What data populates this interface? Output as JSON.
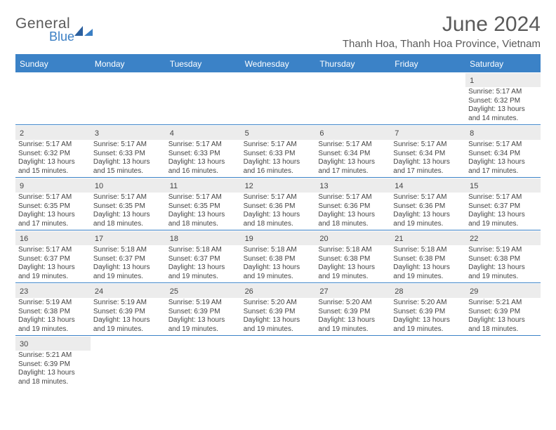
{
  "logo": {
    "text1": "General",
    "text2": "Blue"
  },
  "title": "June 2024",
  "location": "Thanh Hoa, Thanh Hoa Province, Vietnam",
  "colors": {
    "header_bg": "#3b82c7",
    "header_text": "#ffffff",
    "num_bg": "#ececec",
    "text": "#444444",
    "logo_gray": "#5a5a5a",
    "logo_blue": "#3b7fc4"
  },
  "day_headers": [
    "Sunday",
    "Monday",
    "Tuesday",
    "Wednesday",
    "Thursday",
    "Friday",
    "Saturday"
  ],
  "weeks": [
    [
      {
        "blank": true
      },
      {
        "blank": true
      },
      {
        "blank": true
      },
      {
        "blank": true
      },
      {
        "blank": true
      },
      {
        "blank": true
      },
      {
        "num": "1",
        "sunrise": "Sunrise: 5:17 AM",
        "sunset": "Sunset: 6:32 PM",
        "daylight1": "Daylight: 13 hours",
        "daylight2": "and 14 minutes."
      }
    ],
    [
      {
        "num": "2",
        "sunrise": "Sunrise: 5:17 AM",
        "sunset": "Sunset: 6:32 PM",
        "daylight1": "Daylight: 13 hours",
        "daylight2": "and 15 minutes."
      },
      {
        "num": "3",
        "sunrise": "Sunrise: 5:17 AM",
        "sunset": "Sunset: 6:33 PM",
        "daylight1": "Daylight: 13 hours",
        "daylight2": "and 15 minutes."
      },
      {
        "num": "4",
        "sunrise": "Sunrise: 5:17 AM",
        "sunset": "Sunset: 6:33 PM",
        "daylight1": "Daylight: 13 hours",
        "daylight2": "and 16 minutes."
      },
      {
        "num": "5",
        "sunrise": "Sunrise: 5:17 AM",
        "sunset": "Sunset: 6:33 PM",
        "daylight1": "Daylight: 13 hours",
        "daylight2": "and 16 minutes."
      },
      {
        "num": "6",
        "sunrise": "Sunrise: 5:17 AM",
        "sunset": "Sunset: 6:34 PM",
        "daylight1": "Daylight: 13 hours",
        "daylight2": "and 17 minutes."
      },
      {
        "num": "7",
        "sunrise": "Sunrise: 5:17 AM",
        "sunset": "Sunset: 6:34 PM",
        "daylight1": "Daylight: 13 hours",
        "daylight2": "and 17 minutes."
      },
      {
        "num": "8",
        "sunrise": "Sunrise: 5:17 AM",
        "sunset": "Sunset: 6:34 PM",
        "daylight1": "Daylight: 13 hours",
        "daylight2": "and 17 minutes."
      }
    ],
    [
      {
        "num": "9",
        "sunrise": "Sunrise: 5:17 AM",
        "sunset": "Sunset: 6:35 PM",
        "daylight1": "Daylight: 13 hours",
        "daylight2": "and 17 minutes."
      },
      {
        "num": "10",
        "sunrise": "Sunrise: 5:17 AM",
        "sunset": "Sunset: 6:35 PM",
        "daylight1": "Daylight: 13 hours",
        "daylight2": "and 18 minutes."
      },
      {
        "num": "11",
        "sunrise": "Sunrise: 5:17 AM",
        "sunset": "Sunset: 6:35 PM",
        "daylight1": "Daylight: 13 hours",
        "daylight2": "and 18 minutes."
      },
      {
        "num": "12",
        "sunrise": "Sunrise: 5:17 AM",
        "sunset": "Sunset: 6:36 PM",
        "daylight1": "Daylight: 13 hours",
        "daylight2": "and 18 minutes."
      },
      {
        "num": "13",
        "sunrise": "Sunrise: 5:17 AM",
        "sunset": "Sunset: 6:36 PM",
        "daylight1": "Daylight: 13 hours",
        "daylight2": "and 18 minutes."
      },
      {
        "num": "14",
        "sunrise": "Sunrise: 5:17 AM",
        "sunset": "Sunset: 6:36 PM",
        "daylight1": "Daylight: 13 hours",
        "daylight2": "and 19 minutes."
      },
      {
        "num": "15",
        "sunrise": "Sunrise: 5:17 AM",
        "sunset": "Sunset: 6:37 PM",
        "daylight1": "Daylight: 13 hours",
        "daylight2": "and 19 minutes."
      }
    ],
    [
      {
        "num": "16",
        "sunrise": "Sunrise: 5:17 AM",
        "sunset": "Sunset: 6:37 PM",
        "daylight1": "Daylight: 13 hours",
        "daylight2": "and 19 minutes."
      },
      {
        "num": "17",
        "sunrise": "Sunrise: 5:18 AM",
        "sunset": "Sunset: 6:37 PM",
        "daylight1": "Daylight: 13 hours",
        "daylight2": "and 19 minutes."
      },
      {
        "num": "18",
        "sunrise": "Sunrise: 5:18 AM",
        "sunset": "Sunset: 6:37 PM",
        "daylight1": "Daylight: 13 hours",
        "daylight2": "and 19 minutes."
      },
      {
        "num": "19",
        "sunrise": "Sunrise: 5:18 AM",
        "sunset": "Sunset: 6:38 PM",
        "daylight1": "Daylight: 13 hours",
        "daylight2": "and 19 minutes."
      },
      {
        "num": "20",
        "sunrise": "Sunrise: 5:18 AM",
        "sunset": "Sunset: 6:38 PM",
        "daylight1": "Daylight: 13 hours",
        "daylight2": "and 19 minutes."
      },
      {
        "num": "21",
        "sunrise": "Sunrise: 5:18 AM",
        "sunset": "Sunset: 6:38 PM",
        "daylight1": "Daylight: 13 hours",
        "daylight2": "and 19 minutes."
      },
      {
        "num": "22",
        "sunrise": "Sunrise: 5:19 AM",
        "sunset": "Sunset: 6:38 PM",
        "daylight1": "Daylight: 13 hours",
        "daylight2": "and 19 minutes."
      }
    ],
    [
      {
        "num": "23",
        "sunrise": "Sunrise: 5:19 AM",
        "sunset": "Sunset: 6:38 PM",
        "daylight1": "Daylight: 13 hours",
        "daylight2": "and 19 minutes."
      },
      {
        "num": "24",
        "sunrise": "Sunrise: 5:19 AM",
        "sunset": "Sunset: 6:39 PM",
        "daylight1": "Daylight: 13 hours",
        "daylight2": "and 19 minutes."
      },
      {
        "num": "25",
        "sunrise": "Sunrise: 5:19 AM",
        "sunset": "Sunset: 6:39 PM",
        "daylight1": "Daylight: 13 hours",
        "daylight2": "and 19 minutes."
      },
      {
        "num": "26",
        "sunrise": "Sunrise: 5:20 AM",
        "sunset": "Sunset: 6:39 PM",
        "daylight1": "Daylight: 13 hours",
        "daylight2": "and 19 minutes."
      },
      {
        "num": "27",
        "sunrise": "Sunrise: 5:20 AM",
        "sunset": "Sunset: 6:39 PM",
        "daylight1": "Daylight: 13 hours",
        "daylight2": "and 19 minutes."
      },
      {
        "num": "28",
        "sunrise": "Sunrise: 5:20 AM",
        "sunset": "Sunset: 6:39 PM",
        "daylight1": "Daylight: 13 hours",
        "daylight2": "and 19 minutes."
      },
      {
        "num": "29",
        "sunrise": "Sunrise: 5:21 AM",
        "sunset": "Sunset: 6:39 PM",
        "daylight1": "Daylight: 13 hours",
        "daylight2": "and 18 minutes."
      }
    ],
    [
      {
        "num": "30",
        "sunrise": "Sunrise: 5:21 AM",
        "sunset": "Sunset: 6:39 PM",
        "daylight1": "Daylight: 13 hours",
        "daylight2": "and 18 minutes."
      },
      {
        "blank": true
      },
      {
        "blank": true
      },
      {
        "blank": true
      },
      {
        "blank": true
      },
      {
        "blank": true
      },
      {
        "blank": true
      }
    ]
  ]
}
